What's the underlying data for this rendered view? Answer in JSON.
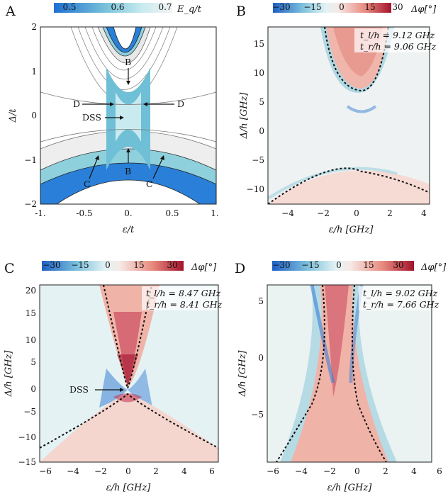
{
  "figure": {
    "panels": [
      {
        "label": "A",
        "colorbar": {
          "ticks": [
            "0.5",
            "0.6",
            "0.7"
          ],
          "label": "E_q/t",
          "colors": [
            "#1f6fd1",
            "#a7dde6",
            "#f2f2f2"
          ]
        },
        "xlabel": "ε/t",
        "ylabel": "Δ/t",
        "xticks": [
          "-1.",
          "-0.5",
          "0.",
          "0.5",
          "1."
        ],
        "yticks": [
          "2",
          "1",
          "0",
          "−1",
          "−2"
        ],
        "annotations": [
          "B",
          "B",
          "D",
          "D",
          "DSS",
          "C",
          "C"
        ]
      },
      {
        "label": "B",
        "colorbar": {
          "ticks": [
            "−30",
            "−15",
            "0",
            "15",
            "30"
          ],
          "label": "Δφ[°]"
        },
        "xlabel": "ε/h [GHz]",
        "ylabel": "Δ/h [GHz]",
        "xticks": [
          "−4",
          "−2",
          "0",
          "2",
          "4"
        ],
        "yticks": [
          "15",
          "10",
          "5",
          "0",
          "−5",
          "−10"
        ],
        "params": [
          "t_l/h = 9.12 GHz",
          "t_r/h = 9.06 GHz"
        ]
      },
      {
        "label": "C",
        "colorbar": {
          "ticks": [
            "−30",
            "−15",
            "0",
            "15",
            "30"
          ],
          "label": "Δφ[°]"
        },
        "xlabel": "ε/h [GHz]",
        "ylabel": "Δ/h [GHz]",
        "xticks": [
          "−6",
          "−4",
          "−2",
          "0",
          "2",
          "4",
          "6"
        ],
        "yticks": [
          "20",
          "15",
          "10",
          "5",
          "0",
          "−5",
          "−10",
          "−15"
        ],
        "params": [
          "t_l/h = 8.47 GHz",
          "t_r/h = 8.41 GHz"
        ],
        "annotations": [
          "DSS"
        ]
      },
      {
        "label": "D",
        "colorbar": {
          "ticks": [
            "−30",
            "−15",
            "0",
            "15",
            "30"
          ],
          "label": "Δφ[°]"
        },
        "xlabel": "ε/h [GHz]",
        "ylabel": "Δ/h [GHz]",
        "xticks": [
          "−6",
          "−4",
          "−2",
          "0",
          "2",
          "4",
          "6"
        ],
        "yticks": [
          "5",
          "0",
          "−5"
        ],
        "params": [
          "t_l/h = 9.02 GHz",
          "t_r/h = 7.66 GHz"
        ]
      }
    ],
    "diverging_colors": [
      "#1f5fc4",
      "#9fd2e0",
      "#f3f3f3",
      "#ef9a8c",
      "#a3132c"
    ]
  }
}
